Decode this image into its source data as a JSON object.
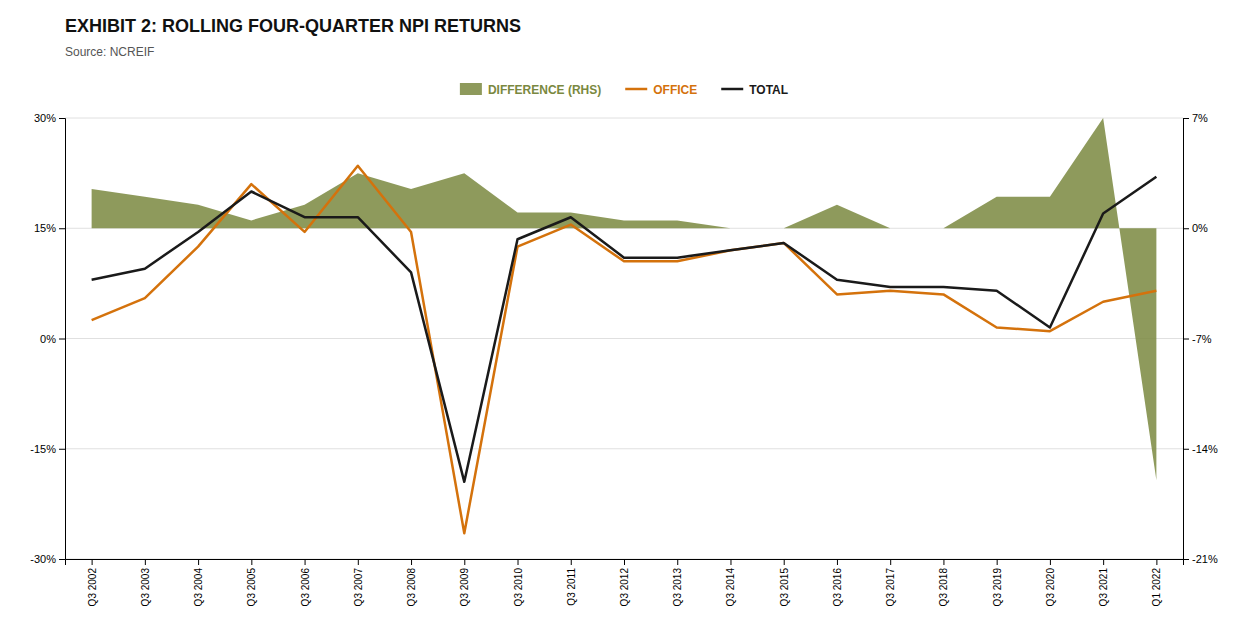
{
  "chart_data": {
    "type": "line",
    "title": "EXHIBIT 2: ROLLING FOUR-QUARTER NPI RETURNS",
    "subtitle": "Source: NCREIF",
    "categories": [
      "Q3 2002",
      "Q3 2003",
      "Q3 2004",
      "Q3 2005",
      "Q3 2006",
      "Q3 2007",
      "Q3 2008",
      "Q3 2009",
      "Q3 2010",
      "Q3 2011",
      "Q3 2012",
      "Q3 2013",
      "Q3 2014",
      "Q3 2015",
      "Q3 2016",
      "Q3 2017",
      "Q3 2018",
      "Q3 2019",
      "Q3 2020",
      "Q3 2021",
      "Q1 2022"
    ],
    "series": [
      {
        "name": "DIFFERENCE (RHS)",
        "type": "area",
        "axis": "y2",
        "color": "#7a8840",
        "values": [
          2.5,
          2.0,
          1.5,
          0.5,
          1.5,
          3.5,
          2.5,
          3.5,
          1.0,
          1.0,
          0.5,
          0.5,
          0.0,
          0.0,
          1.5,
          0.0,
          0.0,
          2.0,
          2.0,
          7.0,
          -16.0
        ]
      },
      {
        "name": "OFFICE",
        "type": "line",
        "color": "#d4720c",
        "values": [
          2.5,
          5.5,
          12.5,
          21.0,
          14.5,
          23.5,
          14.5,
          -26.5,
          12.5,
          15.5,
          10.5,
          10.5,
          12.0,
          13.0,
          6.0,
          6.5,
          6.0,
          1.5,
          1.0,
          5.0,
          6.5
        ]
      },
      {
        "name": "TOTAL",
        "type": "line",
        "color": "#1a1a1a",
        "values": [
          8.0,
          9.5,
          14.5,
          20.0,
          16.5,
          16.5,
          9.0,
          -19.5,
          13.5,
          16.5,
          11.0,
          11.0,
          12.0,
          13.0,
          8.0,
          7.0,
          7.0,
          6.5,
          1.5,
          17.0,
          22.0
        ]
      }
    ],
    "ylim": [
      -30,
      30
    ],
    "yticks": [
      {
        "value": -30,
        "label": "-30%"
      },
      {
        "value": -15,
        "label": "-15%"
      },
      {
        "value": 0,
        "label": "0%"
      },
      {
        "value": 15,
        "label": "15%"
      },
      {
        "value": 30,
        "label": "30%"
      }
    ],
    "y2lim": [
      -21,
      7
    ],
    "y2ticks": [
      {
        "value": -21,
        "label": "-21%"
      },
      {
        "value": -14,
        "label": "-14%"
      },
      {
        "value": -7,
        "label": "-7%"
      },
      {
        "value": 0,
        "label": "0%"
      },
      {
        "value": 7,
        "label": "7%"
      }
    ],
    "grid": true,
    "legend": "top"
  }
}
